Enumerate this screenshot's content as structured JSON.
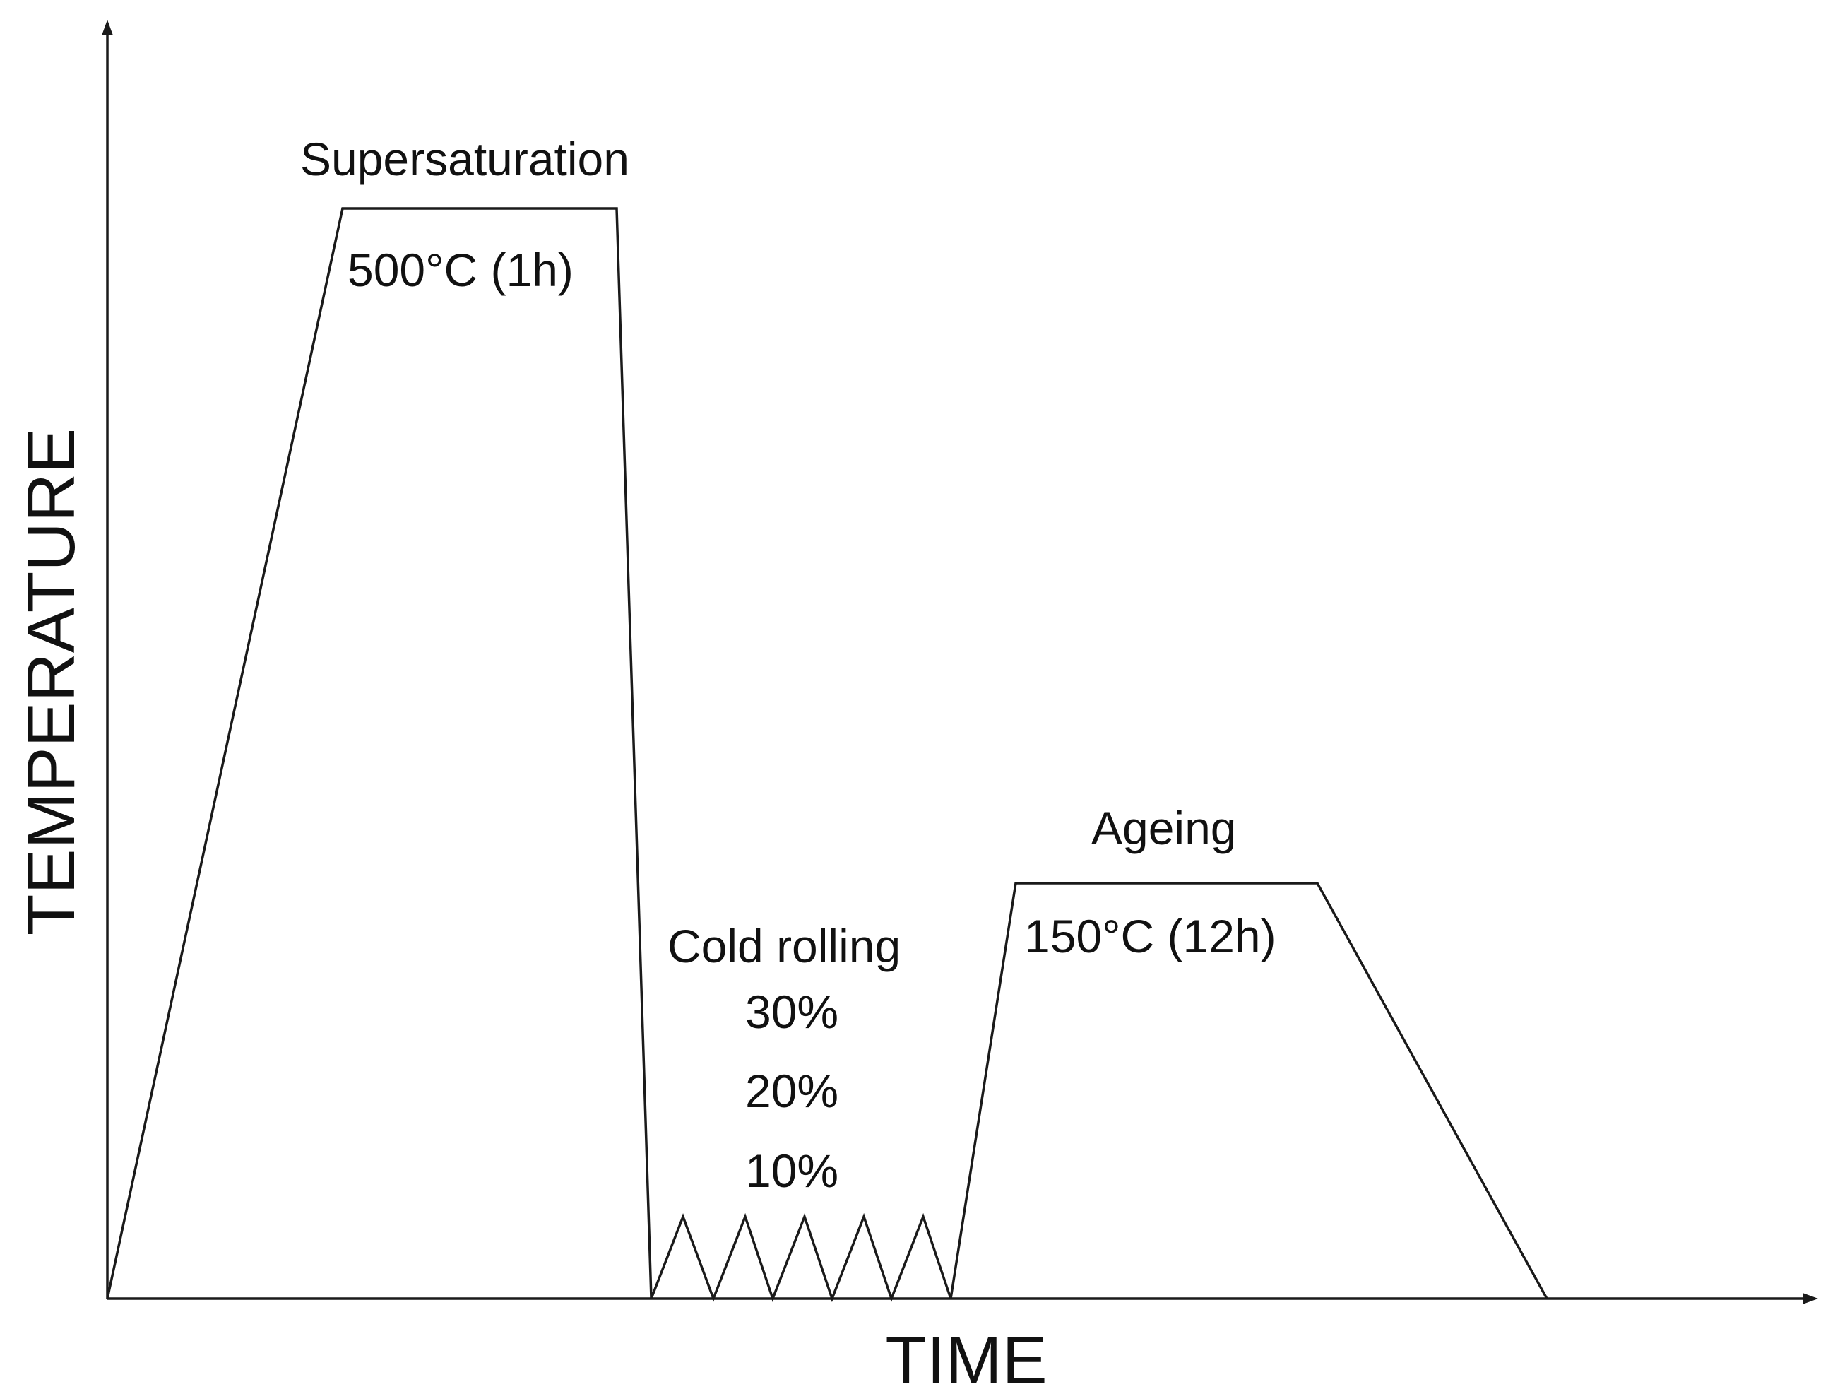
{
  "axes": {
    "x_label": "TIME",
    "y_label": "TEMPERATURE"
  },
  "stages": {
    "supersaturation": {
      "title": "Supersaturation",
      "condition": "500°C (1h)"
    },
    "cold_rolling": {
      "title": "Cold rolling",
      "levels": [
        "30%",
        "20%",
        "10%"
      ]
    },
    "ageing": {
      "title": "Ageing",
      "condition": "150°C (12h)"
    }
  },
  "colors": {
    "line": "#1a1a1a",
    "text": "#111111",
    "background": "#ffffff"
  }
}
